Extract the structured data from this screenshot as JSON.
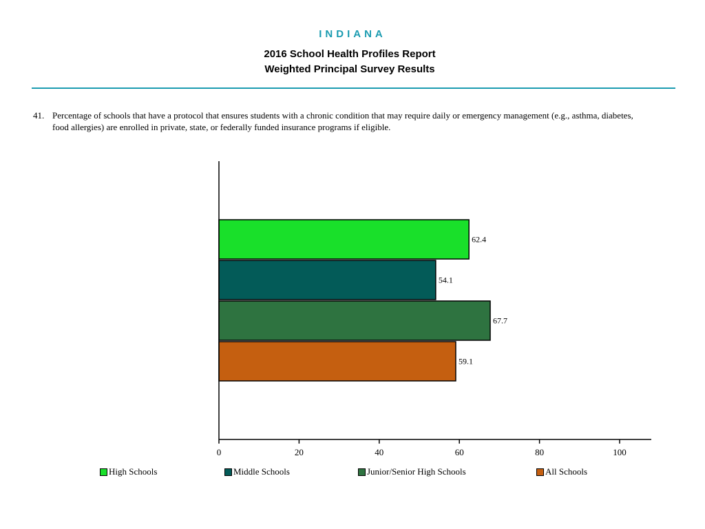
{
  "header": {
    "state": "INDIANA",
    "title_line1": "2016 School Health Profiles Report",
    "title_line2": "Weighted Principal Survey Results"
  },
  "question": {
    "number": "41.",
    "text": "Percentage of schools that have a protocol that ensures students with a chronic condition that may require daily or emergency management (e.g., asthma, diabetes, food allergies) are enrolled in private, state, or federally funded insurance programs if eligible."
  },
  "colors": {
    "accent": "#1a9bb0",
    "high_schools": "#19e02a",
    "middle_schools": "#035b58",
    "junior_senior": "#2e7340",
    "all_schools": "#c55f10"
  },
  "chart_data": {
    "type": "bar",
    "orientation": "horizontal",
    "categories": [
      "High Schools",
      "Middle Schools",
      "Junior/Senior High Schools",
      "All Schools"
    ],
    "values": [
      62.4,
      54.1,
      67.7,
      59.1
    ],
    "value_labels": [
      "62.4",
      "54.1",
      "67.7",
      "59.1"
    ],
    "colors": [
      "#19e02a",
      "#035b58",
      "#2e7340",
      "#c55f10"
    ],
    "xlim": [
      0,
      100
    ],
    "xticks": [
      0,
      20,
      40,
      60,
      80,
      100
    ],
    "xtick_labels": [
      "0",
      "20",
      "40",
      "60",
      "80",
      "100"
    ],
    "title": "",
    "xlabel": "",
    "ylabel": "",
    "grid": false,
    "legend": "bottom"
  }
}
